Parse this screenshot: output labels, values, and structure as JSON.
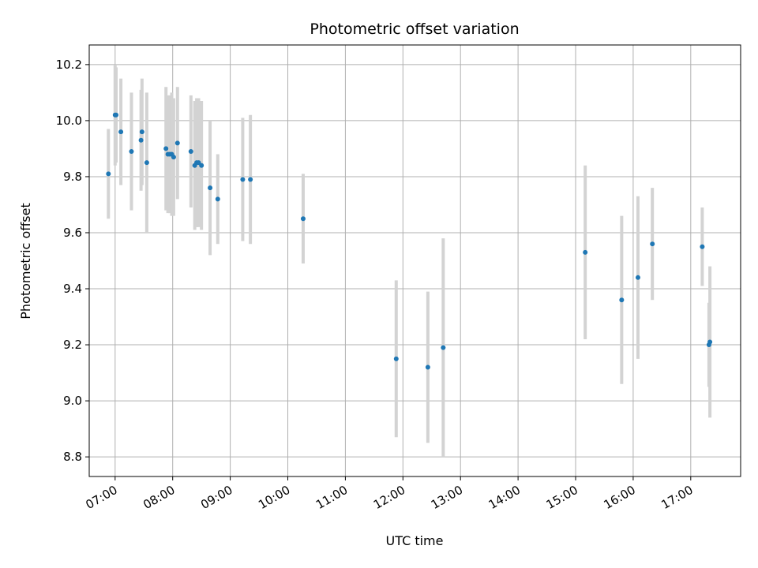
{
  "chart_data": {
    "type": "scatter",
    "title": "Photometric offset variation",
    "xlabel": "UTC time",
    "ylabel": "Photometric offset",
    "x_ticks": [
      "07:00",
      "08:00",
      "09:00",
      "10:00",
      "11:00",
      "12:00",
      "13:00",
      "14:00",
      "15:00",
      "16:00",
      "17:00"
    ],
    "y_ticks": [
      "8.8",
      "9.0",
      "9.2",
      "9.4",
      "9.6",
      "9.8",
      "10.0",
      "10.2"
    ],
    "xlim": [
      "06:33",
      "17:52"
    ],
    "ylim": [
      8.73,
      10.27
    ],
    "grid": true,
    "colors": {
      "point": "#1f77b4",
      "errorbar": "#d3d3d3",
      "grid": "#b0b0b0"
    },
    "points": [
      {
        "time": "06:53",
        "y": 9.81,
        "err": 0.16
      },
      {
        "time": "07:00",
        "y": 10.02,
        "err": 0.18
      },
      {
        "time": "07:01",
        "y": 10.02,
        "err": 0.17
      },
      {
        "time": "07:06",
        "y": 9.96,
        "err": 0.19
      },
      {
        "time": "07:17",
        "y": 9.89,
        "err": 0.21
      },
      {
        "time": "07:27",
        "y": 9.93,
        "err": 0.18
      },
      {
        "time": "07:28",
        "y": 9.96,
        "err": 0.19
      },
      {
        "time": "07:33",
        "y": 9.85,
        "err": 0.25
      },
      {
        "time": "07:53",
        "y": 9.9,
        "err": 0.22
      },
      {
        "time": "07:55",
        "y": 9.88,
        "err": 0.21
      },
      {
        "time": "07:57",
        "y": 9.88,
        "err": 0.21
      },
      {
        "time": "07:59",
        "y": 9.88,
        "err": 0.22
      },
      {
        "time": "08:01",
        "y": 9.87,
        "err": 0.21
      },
      {
        "time": "08:05",
        "y": 9.92,
        "err": 0.2
      },
      {
        "time": "08:19",
        "y": 9.89,
        "err": 0.2
      },
      {
        "time": "08:23",
        "y": 9.84,
        "err": 0.23
      },
      {
        "time": "08:25",
        "y": 9.85,
        "err": 0.23
      },
      {
        "time": "08:27",
        "y": 9.85,
        "err": 0.23
      },
      {
        "time": "08:30",
        "y": 9.84,
        "err": 0.23
      },
      {
        "time": "08:39",
        "y": 9.76,
        "err": 0.24
      },
      {
        "time": "08:47",
        "y": 9.72,
        "err": 0.16
      },
      {
        "time": "09:13",
        "y": 9.79,
        "err": 0.22
      },
      {
        "time": "09:21",
        "y": 9.79,
        "err": 0.23
      },
      {
        "time": "10:16",
        "y": 9.65,
        "err": 0.16
      },
      {
        "time": "11:53",
        "y": 9.15,
        "err": 0.28
      },
      {
        "time": "12:26",
        "y": 9.12,
        "err": 0.27
      },
      {
        "time": "12:42",
        "y": 9.19,
        "err": 0.39
      },
      {
        "time": "15:10",
        "y": 9.53,
        "err": 0.31
      },
      {
        "time": "15:48",
        "y": 9.36,
        "err": 0.3
      },
      {
        "time": "16:05",
        "y": 9.44,
        "err": 0.29
      },
      {
        "time": "16:20",
        "y": 9.56,
        "err": 0.2
      },
      {
        "time": "17:12",
        "y": 9.55,
        "err": 0.14
      },
      {
        "time": "17:19",
        "y": 9.2,
        "err": 0.15
      },
      {
        "time": "17:20",
        "y": 9.21,
        "err": 0.27
      }
    ]
  }
}
